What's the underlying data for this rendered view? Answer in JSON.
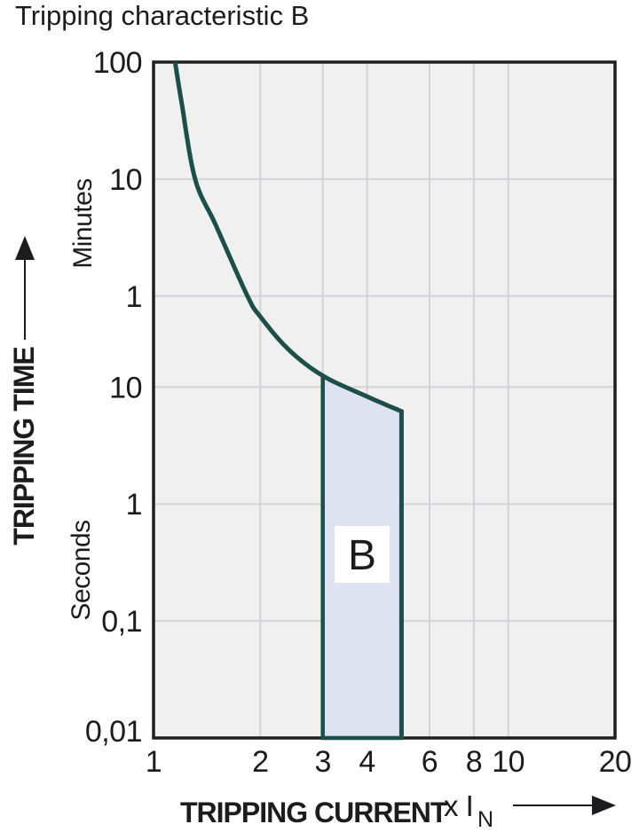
{
  "title": "Tripping characteristic B",
  "colors": {
    "curve": "#1d4e48",
    "band_fill": "#dde3f1",
    "band_stroke": "#1d4e48",
    "plot_background": "#f0f0f0",
    "gridline": "#d3d4d7",
    "frame": "#1e1e20",
    "text": "#1c1c1e",
    "band_label_background": "#ffffff"
  },
  "chart_data": {
    "type": "line",
    "title": "Tripping characteristic B",
    "grid": "on",
    "x_axis": {
      "label": "TRIPPING CURRENT",
      "unit_label": "x I",
      "unit_label_subscript": "N",
      "scale": "log",
      "range": [
        1,
        20
      ],
      "tick_values": [
        1,
        2,
        3,
        4,
        6,
        8,
        10,
        20
      ],
      "tick_labels": [
        "1",
        "2",
        "3",
        "4",
        "6",
        "8",
        "10",
        "20"
      ],
      "gridline_values": [
        2,
        3,
        4,
        6,
        8,
        10
      ]
    },
    "y_axis": {
      "label": "TRIPPING TIME",
      "scale": "log",
      "range_seconds": [
        0.01,
        6000
      ],
      "unit_sections": [
        {
          "label": "Minutes"
        },
        {
          "label": "Seconds"
        }
      ],
      "ticks": [
        {
          "label": "100",
          "seconds": 6000,
          "unit": "Minutes"
        },
        {
          "label": "10",
          "seconds": 600,
          "unit": "Minutes"
        },
        {
          "label": "1",
          "seconds": 60,
          "unit": "Minutes"
        },
        {
          "label": "10",
          "seconds": 10,
          "unit": "Seconds"
        },
        {
          "label": "1",
          "seconds": 1,
          "unit": "Seconds"
        },
        {
          "label": "0,1",
          "seconds": 0.1,
          "unit": "Seconds"
        },
        {
          "label": "0,01",
          "seconds": 0.01,
          "unit": "Seconds"
        }
      ],
      "gridline_values_seconds": [
        600,
        60,
        10,
        1,
        0.1
      ]
    },
    "series": [
      {
        "name": "tripping-time-upper-limit-curve",
        "points_x_vs_seconds": [
          [
            1.15,
            6000
          ],
          [
            1.2,
            2700
          ],
          [
            1.31,
            600
          ],
          [
            1.5,
            240
          ],
          [
            1.84,
            60
          ],
          [
            2.0,
            40
          ],
          [
            2.4,
            21
          ],
          [
            3.0,
            12.5
          ],
          [
            4.0,
            8.3
          ],
          [
            5.0,
            6.2
          ],
          [
            5.0,
            0.01
          ]
        ]
      }
    ],
    "band": {
      "label": "B",
      "x_range": [
        3,
        5
      ],
      "top_edge_x_vs_seconds": [
        [
          3.0,
          12.5
        ],
        [
          4.0,
          8.3
        ],
        [
          5.0,
          6.2
        ]
      ],
      "bottom_seconds": 0.01
    }
  }
}
